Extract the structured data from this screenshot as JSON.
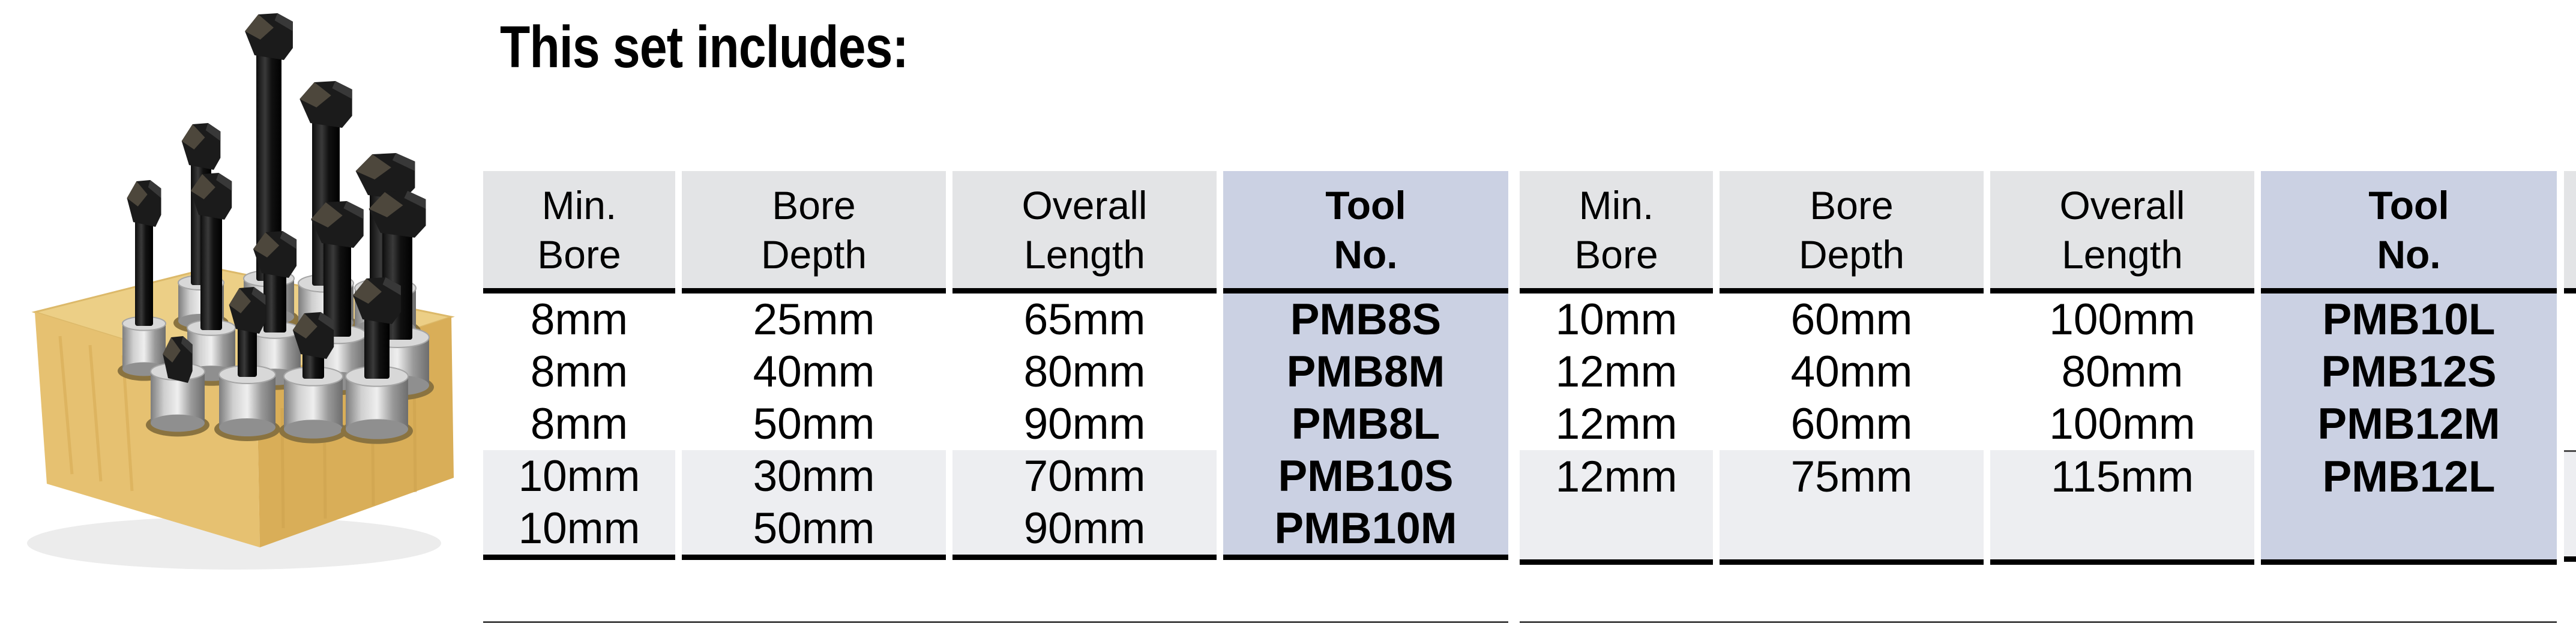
{
  "heading": "This set includes:",
  "photo": {
    "description": "Set of boring bars with black carbide-tipped heads and silver cylindrical shanks standing upright in a light wooden holder block"
  },
  "colors": {
    "header_bg": "#e3e4e6",
    "tool_col_bg": "#cbd1e3",
    "band_bg": "#edeef1",
    "rule_thick": "#000000",
    "rule_thin": "#4a4a4a",
    "text": "#000000"
  },
  "tables": [
    {
      "name": "left",
      "columns": [
        [
          "Min.",
          "Bore"
        ],
        [
          "Bore",
          "Depth"
        ],
        [
          "Overall",
          "Length"
        ],
        [
          "Tool",
          "No."
        ]
      ],
      "rows": [
        [
          "8mm",
          "25mm",
          "65mm",
          "PMB8S"
        ],
        [
          "8mm",
          "40mm",
          "80mm",
          "PMB8M"
        ],
        [
          "8mm",
          "50mm",
          "90mm",
          "PMB8L"
        ],
        [
          "10mm",
          "30mm",
          "70mm",
          "PMB10S"
        ],
        [
          "10mm",
          "50mm",
          "90mm",
          "PMB10M"
        ]
      ]
    },
    {
      "name": "right",
      "columns": [
        [
          "Min.",
          "Bore"
        ],
        [
          "Bore",
          "Depth"
        ],
        [
          "Overall",
          "Length"
        ],
        [
          "Tool",
          "No."
        ]
      ],
      "rows": [
        [
          "10mm",
          "60mm",
          "100mm",
          "PMB10L"
        ],
        [
          "12mm",
          "40mm",
          "80mm",
          "PMB12S"
        ],
        [
          "12mm",
          "60mm",
          "100mm",
          "PMB12M"
        ],
        [
          "12mm",
          "75mm",
          "115mm",
          "PMB12L"
        ]
      ]
    }
  ]
}
